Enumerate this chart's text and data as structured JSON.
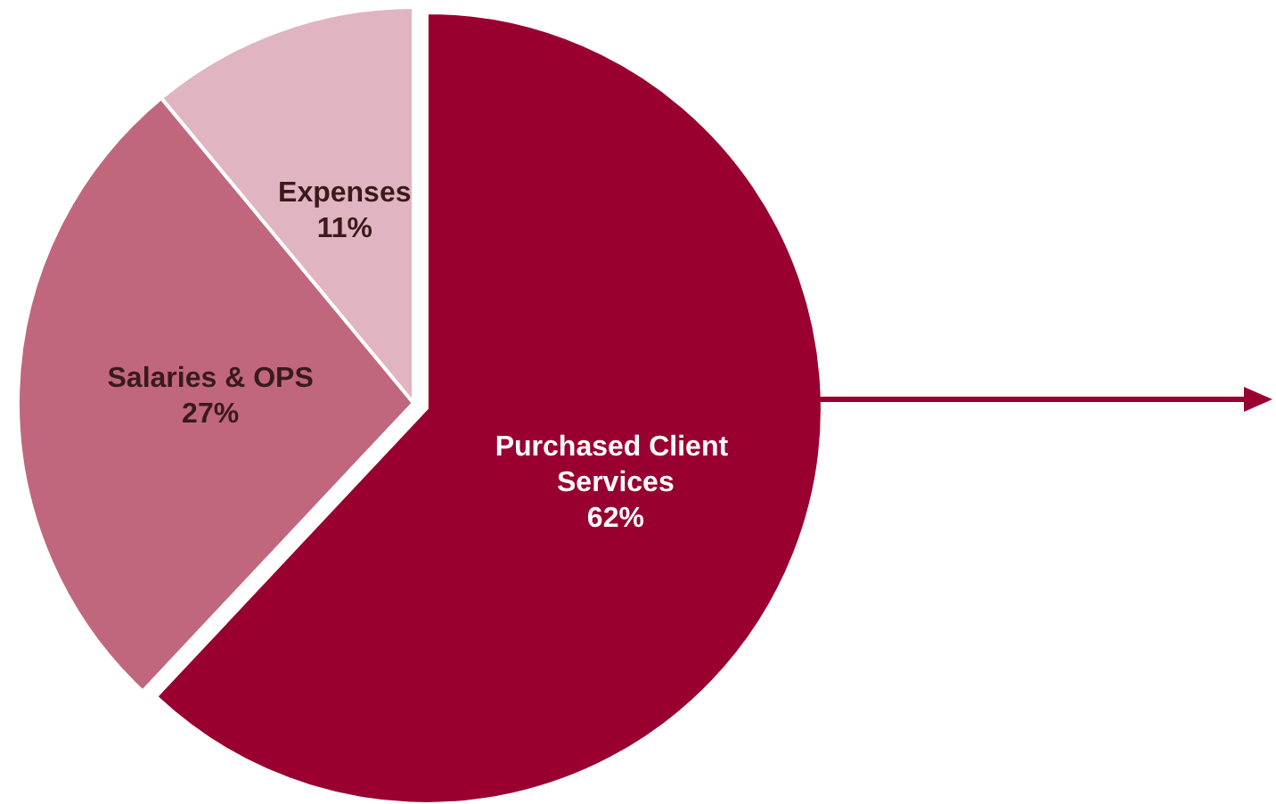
{
  "chart_data": {
    "type": "pie",
    "categories": [
      "Purchased Client Services",
      "Salaries & OPS",
      "Expenses"
    ],
    "values": [
      62,
      27,
      11
    ],
    "value_labels": [
      "62%",
      "27%",
      "11%"
    ],
    "colors": [
      "#990030",
      "#c0677e",
      "#e0b4c0"
    ],
    "legend": false
  }
}
